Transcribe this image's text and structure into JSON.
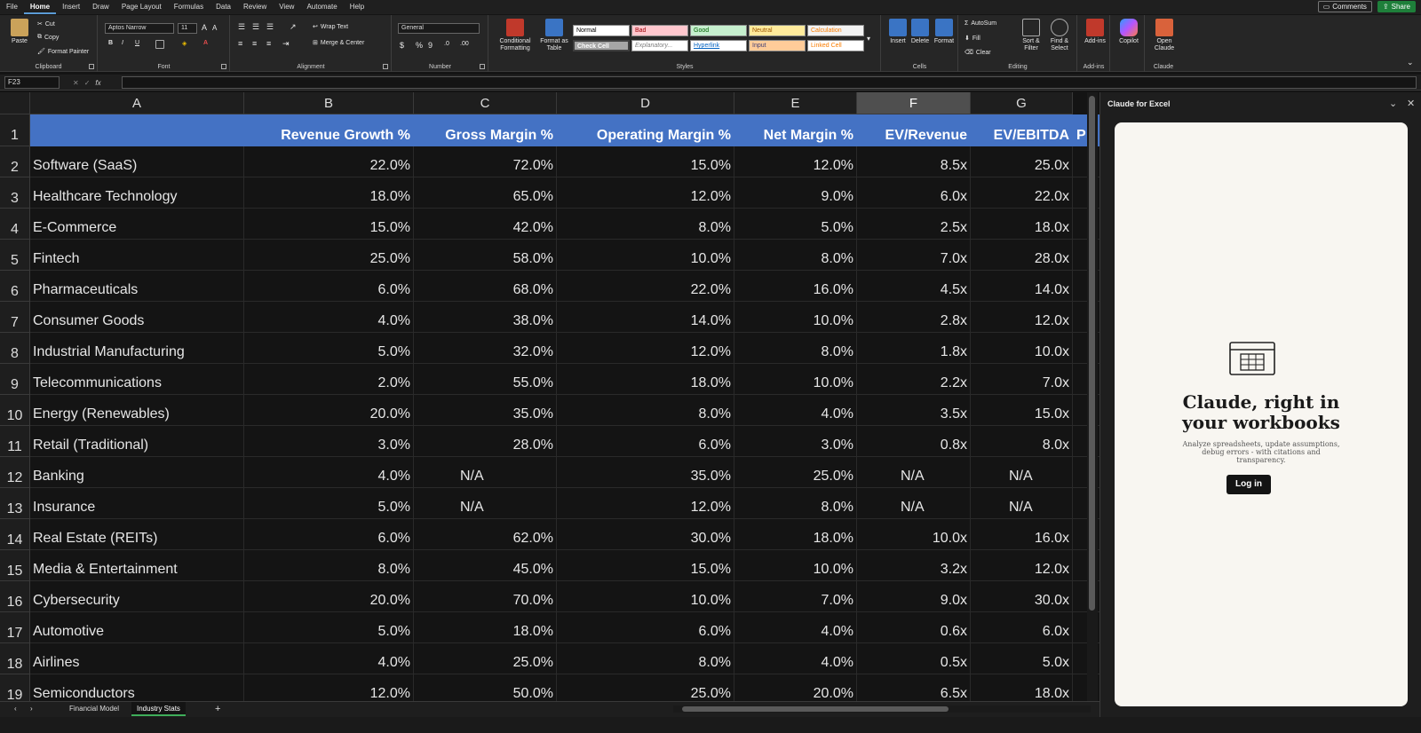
{
  "menu": [
    "File",
    "Home",
    "Insert",
    "Draw",
    "Page Layout",
    "Formulas",
    "Data",
    "Review",
    "View",
    "Automate",
    "Help"
  ],
  "active_menu": "Home",
  "top_right": {
    "comments": "Comments",
    "share": "Share"
  },
  "ribbon": {
    "clipboard": {
      "paste": "Paste",
      "cut": "Cut",
      "copy": "Copy",
      "format_painter": "Format Painter",
      "label": "Clipboard"
    },
    "font": {
      "name": "Aptos Narrow",
      "size": "11",
      "label": "Font"
    },
    "alignment": {
      "wrap": "Wrap Text",
      "merge": "Merge & Center",
      "label": "Alignment"
    },
    "number": {
      "format": "General",
      "label": "Number"
    },
    "styles": {
      "conditional": "Conditional Formatting",
      "format_table": "Format as Table",
      "cells": [
        "Normal",
        "Bad",
        "Good",
        "Neutral",
        "Calculation",
        "Check Cell",
        "Explanatory...",
        "Hyperlink",
        "Input",
        "Linked Cell"
      ],
      "label": "Styles"
    },
    "cells_group": {
      "insert": "Insert",
      "delete": "Delete",
      "format": "Format",
      "label": "Cells"
    },
    "editing": {
      "autosum": "AutoSum",
      "fill": "Fill",
      "clear": "Clear",
      "sort": "Sort & Filter",
      "find": "Find & Select",
      "label": "Editing"
    },
    "addins": {
      "addins": "Add-ins",
      "label": "Add-ins"
    },
    "copilot": {
      "label": "Copilot"
    },
    "claude": {
      "open": "Open Claude",
      "label": "Claude"
    }
  },
  "name_box": "F23",
  "columns": [
    "A",
    "B",
    "C",
    "D",
    "E",
    "F",
    "G"
  ],
  "selected_column": "F",
  "header_row": [
    "",
    "Revenue Growth %",
    "Gross Margin %",
    "Operating Margin %",
    "Net Margin %",
    "EV/Revenue",
    "EV/EBITDA",
    "P"
  ],
  "rows": [
    [
      "Software (SaaS)",
      "22.0%",
      "72.0%",
      "15.0%",
      "12.0%",
      "8.5x",
      "25.0x"
    ],
    [
      "Healthcare Technology",
      "18.0%",
      "65.0%",
      "12.0%",
      "9.0%",
      "6.0x",
      "22.0x"
    ],
    [
      "E-Commerce",
      "15.0%",
      "42.0%",
      "8.0%",
      "5.0%",
      "2.5x",
      "18.0x"
    ],
    [
      "Fintech",
      "25.0%",
      "58.0%",
      "10.0%",
      "8.0%",
      "7.0x",
      "28.0x"
    ],
    [
      "Pharmaceuticals",
      "6.0%",
      "68.0%",
      "22.0%",
      "16.0%",
      "4.5x",
      "14.0x"
    ],
    [
      "Consumer Goods",
      "4.0%",
      "38.0%",
      "14.0%",
      "10.0%",
      "2.8x",
      "12.0x"
    ],
    [
      "Industrial Manufacturing",
      "5.0%",
      "32.0%",
      "12.0%",
      "8.0%",
      "1.8x",
      "10.0x"
    ],
    [
      "Telecommunications",
      "2.0%",
      "55.0%",
      "18.0%",
      "10.0%",
      "2.2x",
      "7.0x"
    ],
    [
      "Energy (Renewables)",
      "20.0%",
      "35.0%",
      "8.0%",
      "4.0%",
      "3.5x",
      "15.0x"
    ],
    [
      "Retail (Traditional)",
      "3.0%",
      "28.0%",
      "6.0%",
      "3.0%",
      "0.8x",
      "8.0x"
    ],
    [
      "Banking",
      "4.0%",
      "N/A",
      "35.0%",
      "25.0%",
      "N/A",
      "N/A"
    ],
    [
      "Insurance",
      "5.0%",
      "N/A",
      "12.0%",
      "8.0%",
      "N/A",
      "N/A"
    ],
    [
      "Real Estate (REITs)",
      "6.0%",
      "62.0%",
      "30.0%",
      "18.0%",
      "10.0x",
      "16.0x"
    ],
    [
      "Media & Entertainment",
      "8.0%",
      "45.0%",
      "15.0%",
      "10.0%",
      "3.2x",
      "12.0x"
    ],
    [
      "Cybersecurity",
      "20.0%",
      "70.0%",
      "10.0%",
      "7.0%",
      "9.0x",
      "30.0x"
    ],
    [
      "Automotive",
      "5.0%",
      "18.0%",
      "6.0%",
      "4.0%",
      "0.6x",
      "6.0x"
    ],
    [
      "Airlines",
      "4.0%",
      "25.0%",
      "8.0%",
      "4.0%",
      "0.5x",
      "5.0x"
    ],
    [
      "Semiconductors",
      "12.0%",
      "50.0%",
      "25.0%",
      "20.0%",
      "6.5x",
      "18.0x"
    ]
  ],
  "sheet_tabs": [
    "Financial Model",
    "Industry Stats"
  ],
  "active_tab": "Industry Stats",
  "panel": {
    "title": "Claude for Excel",
    "heading_line1": "Claude, right in",
    "heading_line2": "your workbooks",
    "subtitle": "Analyze spreadsheets, update assumptions, debug errors - with citations and transparency.",
    "login": "Log in"
  },
  "colors": {
    "header_fill": "#4472c4",
    "share": "#1e7f3a"
  }
}
